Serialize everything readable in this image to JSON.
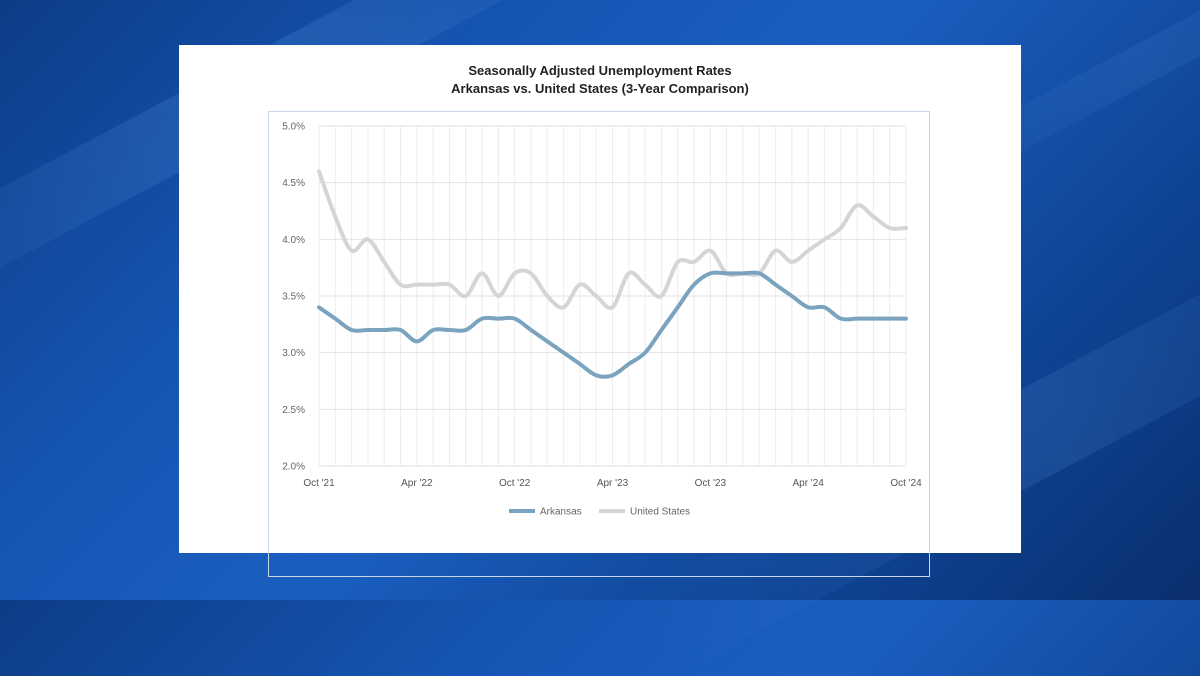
{
  "chart_data": {
    "type": "line",
    "title": "Seasonally Adjusted Unemployment Rates",
    "subtitle": "Arkansas vs. United States (3-Year Comparison)",
    "xlabel": "",
    "ylabel": "",
    "ylim": [
      2.0,
      5.0
    ],
    "yticks": [
      2.0,
      2.5,
      3.0,
      3.5,
      4.0,
      4.5,
      5.0
    ],
    "ytick_labels": [
      "2.0%",
      "2.5%",
      "3.0%",
      "3.5%",
      "4.0%",
      "4.5%",
      "5.0%"
    ],
    "x": [
      "Oct '21",
      "Nov '21",
      "Dec '21",
      "Jan '22",
      "Feb '22",
      "Mar '22",
      "Apr '22",
      "May '22",
      "Jun '22",
      "Jul '22",
      "Aug '22",
      "Sep '22",
      "Oct '22",
      "Nov '22",
      "Dec '22",
      "Jan '23",
      "Feb '23",
      "Mar '23",
      "Apr '23",
      "May '23",
      "Jun '23",
      "Jul '23",
      "Aug '23",
      "Sep '23",
      "Oct '23",
      "Nov '23",
      "Dec '23",
      "Jan '24",
      "Feb '24",
      "Mar '24",
      "Apr '24",
      "May '24",
      "Jun '24",
      "Jul '24",
      "Aug '24",
      "Sep '24",
      "Oct '24"
    ],
    "xtick_labels": [
      "Oct '21",
      "Apr '22",
      "Oct '22",
      "Apr '23",
      "Oct '23",
      "Apr '24",
      "Oct '24"
    ],
    "xtick_indices": [
      0,
      6,
      12,
      18,
      24,
      30,
      36
    ],
    "grid": true,
    "legend_position": "bottom",
    "series": [
      {
        "name": "Arkansas",
        "color": "#7aa3bf",
        "values": [
          3.4,
          3.3,
          3.2,
          3.2,
          3.2,
          3.2,
          3.1,
          3.2,
          3.2,
          3.2,
          3.3,
          3.3,
          3.3,
          3.2,
          3.1,
          3.0,
          2.9,
          2.8,
          2.8,
          2.9,
          3.0,
          3.2,
          3.4,
          3.6,
          3.7,
          3.7,
          3.7,
          3.7,
          3.6,
          3.5,
          3.4,
          3.4,
          3.3,
          3.3,
          3.3,
          3.3,
          3.3
        ]
      },
      {
        "name": "United States",
        "color": "#d5d5d5",
        "values": [
          4.6,
          4.2,
          3.9,
          4.0,
          3.8,
          3.6,
          3.6,
          3.6,
          3.6,
          3.5,
          3.7,
          3.5,
          3.7,
          3.7,
          3.5,
          3.4,
          3.6,
          3.5,
          3.4,
          3.7,
          3.6,
          3.5,
          3.8,
          3.8,
          3.9,
          3.7,
          3.7,
          3.7,
          3.9,
          3.8,
          3.9,
          4.0,
          4.1,
          4.3,
          4.2,
          4.1,
          4.1
        ]
      }
    ]
  }
}
